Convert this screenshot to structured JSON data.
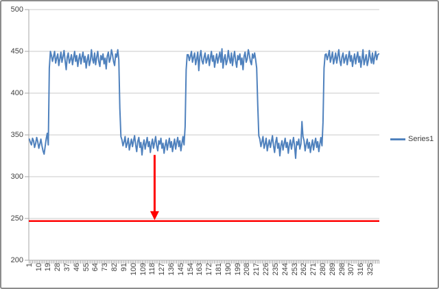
{
  "window": {
    "background": "#ffffff",
    "border_color": "#8c8c8c"
  },
  "legend": {
    "label": "Series1",
    "marker_color": "#4f81bd",
    "position": "right"
  },
  "chart_data": {
    "type": "line",
    "title": "",
    "xlabel": "",
    "ylabel": "",
    "ylim": [
      200,
      500
    ],
    "y_ticks": [
      200,
      250,
      300,
      350,
      400,
      450,
      500
    ],
    "x_tick_labels": [
      1,
      10,
      19,
      28,
      37,
      46,
      55,
      64,
      73,
      82,
      91,
      100,
      109,
      118,
      127,
      136,
      145,
      154,
      163,
      172,
      181,
      190,
      199,
      208,
      217,
      226,
      235,
      244,
      253,
      262,
      271,
      280,
      289,
      298,
      307,
      316,
      325
    ],
    "x_tick_interval": 9,
    "n_points": 333,
    "grid": true,
    "legend_position": "right",
    "colors": {
      "gridline": "#c9c9c9",
      "axis": "#a6a6a6",
      "text": "#3f3f3f"
    },
    "series": [
      {
        "name": "Series1",
        "color": "#4f81bd",
        "values": [
          345,
          341,
          338,
          346,
          343,
          335,
          340,
          347,
          342,
          334,
          339,
          345,
          337,
          331,
          327,
          336,
          345,
          352,
          338,
          430,
          450,
          445,
          438,
          444,
          450,
          436,
          442,
          447,
          433,
          441,
          449,
          437,
          444,
          451,
          439,
          428,
          443,
          448,
          436,
          440,
          446,
          434,
          442,
          450,
          438,
          445,
          432,
          441,
          447,
          435,
          443,
          449,
          437,
          444,
          430,
          440,
          446,
          433,
          439,
          452,
          441,
          436,
          448,
          434,
          443,
          450,
          438,
          432,
          445,
          440,
          447,
          435,
          442,
          429,
          444,
          449,
          437,
          441,
          452,
          446,
          438,
          433,
          447,
          443,
          452,
          440,
          382,
          348,
          344,
          337,
          342,
          348,
          335,
          340,
          346,
          332,
          339,
          345,
          336,
          343,
          349,
          338,
          330,
          342,
          347,
          335,
          341,
          326,
          338,
          344,
          333,
          340,
          347,
          336,
          342,
          329,
          339,
          345,
          334,
          341,
          348,
          337,
          331,
          343,
          339,
          346,
          334,
          340,
          328,
          337,
          344,
          332,
          339,
          346,
          335,
          342,
          330,
          338,
          345,
          333,
          341,
          347,
          336,
          343,
          331,
          340,
          348,
          338,
          360,
          428,
          446,
          446,
          439,
          444,
          450,
          437,
          443,
          448,
          434,
          441,
          449,
          427,
          444,
          451,
          439,
          435,
          443,
          448,
          436,
          441,
          446,
          433,
          442,
          450,
          438,
          445,
          431,
          440,
          447,
          436,
          443,
          449,
          437,
          453,
          430,
          441,
          446,
          434,
          439,
          451,
          442,
          436,
          448,
          433,
          443,
          450,
          438,
          431,
          445,
          440,
          447,
          434,
          442,
          428,
          444,
          449,
          437,
          441,
          452,
          446,
          438,
          434,
          447,
          442,
          448,
          440,
          430,
          385,
          349,
          345,
          336,
          342,
          348,
          334,
          339,
          346,
          331,
          338,
          344,
          335,
          342,
          349,
          337,
          329,
          341,
          347,
          334,
          340,
          325,
          337,
          343,
          332,
          339,
          346,
          335,
          341,
          328,
          338,
          344,
          333,
          340,
          347,
          336,
          322,
          342,
          338,
          345,
          333,
          339,
          366,
          348,
          343,
          331,
          338,
          345,
          334,
          341,
          329,
          337,
          344,
          332,
          340,
          346,
          335,
          342,
          330,
          339,
          347,
          337,
          365,
          430,
          446,
          447,
          440,
          445,
          451,
          437,
          443,
          449,
          435,
          441,
          448,
          436,
          444,
          452,
          439,
          433,
          443,
          448,
          436,
          441,
          446,
          434,
          442,
          450,
          438,
          445,
          432,
          440,
          447,
          435,
          443,
          449,
          437,
          444,
          431,
          441,
          452,
          434,
          440,
          446,
          433,
          439,
          451,
          442,
          436,
          448,
          435,
          443,
          450,
          440,
          446,
          447
        ]
      }
    ],
    "annotations": {
      "red_line": {
        "type": "horizontal-line",
        "value": 247,
        "color": "#ff0000"
      },
      "red_arrow": {
        "type": "down-arrow",
        "x_point": 120,
        "from_value": 326,
        "to_value": 248,
        "color": "#ff0000"
      }
    }
  }
}
